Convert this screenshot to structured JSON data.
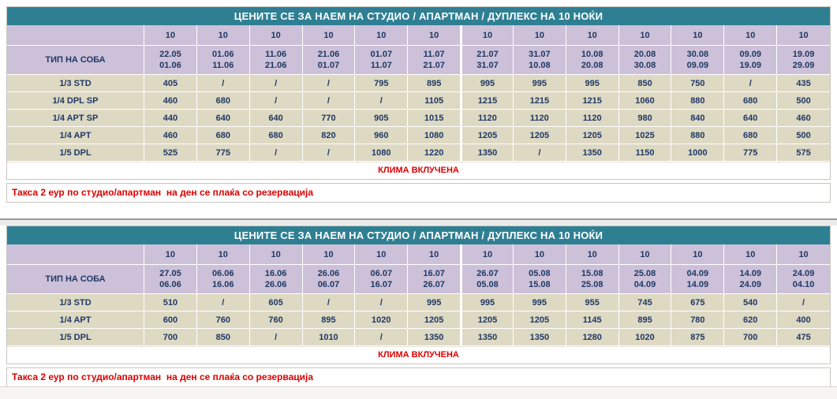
{
  "colors": {
    "header_teal": "#2F7F93",
    "lavender": "#CCC1D9",
    "beige": "#DDD9C3",
    "navy_text": "#1F3864",
    "red_text": "#DD0000"
  },
  "tables": [
    {
      "title": "ЦЕНИТЕ СЕ ЗА НАЕМ НА СТУДИО / АПАРТМАН / ДУПЛЕКС НА 10 НОЌИ",
      "room_type_header": "ТИП НА СОБА",
      "nights": [
        "10",
        "10",
        "10",
        "10",
        "10",
        "10",
        "10",
        "10",
        "10",
        "10",
        "10",
        "10",
        "10"
      ],
      "date_columns": [
        [
          "22.05",
          "01.06"
        ],
        [
          "01.06",
          "11.06"
        ],
        [
          "11.06",
          "21.06"
        ],
        [
          "21.06",
          "01.07"
        ],
        [
          "01.07",
          "11.07"
        ],
        [
          "11.07",
          "21.07"
        ],
        [
          "21.07",
          "31.07"
        ],
        [
          "31.07",
          "10.08"
        ],
        [
          "10.08",
          "20.08"
        ],
        [
          "20.08",
          "30.08"
        ],
        [
          "30.08",
          "09.09"
        ],
        [
          "09.09",
          "19.09"
        ],
        [
          "19.09",
          "29.09"
        ]
      ],
      "rows": [
        {
          "label": "1/3 STD",
          "values": [
            "405",
            "/",
            "/",
            "/",
            "795",
            "895",
            "995",
            "995",
            "995",
            "850",
            "750",
            "/",
            "435"
          ]
        },
        {
          "label": "1/4 DPL SP",
          "values": [
            "460",
            "680",
            "/",
            "/",
            "/",
            "1105",
            "1215",
            "1215",
            "1215",
            "1060",
            "880",
            "680",
            "500"
          ]
        },
        {
          "label": "1/4 APT SP",
          "values": [
            "440",
            "640",
            "640",
            "770",
            "905",
            "1015",
            "1120",
            "1120",
            "1120",
            "980",
            "840",
            "640",
            "460"
          ]
        },
        {
          "label": "1/4 APT",
          "values": [
            "460",
            "680",
            "680",
            "820",
            "960",
            "1080",
            "1205",
            "1205",
            "1205",
            "1025",
            "880",
            "680",
            "500"
          ]
        },
        {
          "label": "1/5 DPL",
          "values": [
            "525",
            "775",
            "/",
            "/",
            "1080",
            "1220",
            "1350",
            "/",
            "1350",
            "1150",
            "1000",
            "775",
            "575"
          ]
        }
      ],
      "climate_note": "КЛИМА ВКЛУЧЕНА",
      "tax_note": "Такса 2 еур по студио/апартман  на ден се плаќа со резервација"
    },
    {
      "title": "ЦЕНИТЕ СЕ ЗА НАЕМ НА СТУДИО / АПАРТМАН / ДУПЛЕКС НА 10 НОЌИ",
      "room_type_header": "ТИП НА СОБА",
      "nights": [
        "10",
        "10",
        "10",
        "10",
        "10",
        "10",
        "10",
        "10",
        "10",
        "10",
        "10",
        "10",
        "10"
      ],
      "date_columns": [
        [
          "27.05",
          "06.06"
        ],
        [
          "06.06",
          "16.06"
        ],
        [
          "16.06",
          "26.06"
        ],
        [
          "26.06",
          "06.07"
        ],
        [
          "06.07",
          "16.07"
        ],
        [
          "16.07",
          "26.07"
        ],
        [
          "26.07",
          "05.08"
        ],
        [
          "05.08",
          "15.08"
        ],
        [
          "15.08",
          "25.08"
        ],
        [
          "25.08",
          "04.09"
        ],
        [
          "04.09",
          "14.09"
        ],
        [
          "14.09",
          "24.09"
        ],
        [
          "24.09",
          "04.10"
        ]
      ],
      "rows": [
        {
          "label": "1/3 STD",
          "values": [
            "510",
            "/",
            "605",
            "/",
            "/",
            "995",
            "995",
            "995",
            "955",
            "745",
            "675",
            "540",
            "/"
          ]
        },
        {
          "label": "1/4 APT",
          "values": [
            "600",
            "760",
            "760",
            "895",
            "1020",
            "1205",
            "1205",
            "1205",
            "1145",
            "895",
            "780",
            "620",
            "400"
          ]
        },
        {
          "label": "1/5 DPL",
          "values": [
            "700",
            "850",
            "/",
            "1010",
            "/",
            "1350",
            "1350",
            "1350",
            "1280",
            "1020",
            "875",
            "700",
            "475"
          ]
        }
      ],
      "climate_note": "КЛИМА ВКЛУЧЕНА",
      "tax_note": "Такса 2 еур по студио/апартман  на ден се плаќа со резервација"
    }
  ]
}
